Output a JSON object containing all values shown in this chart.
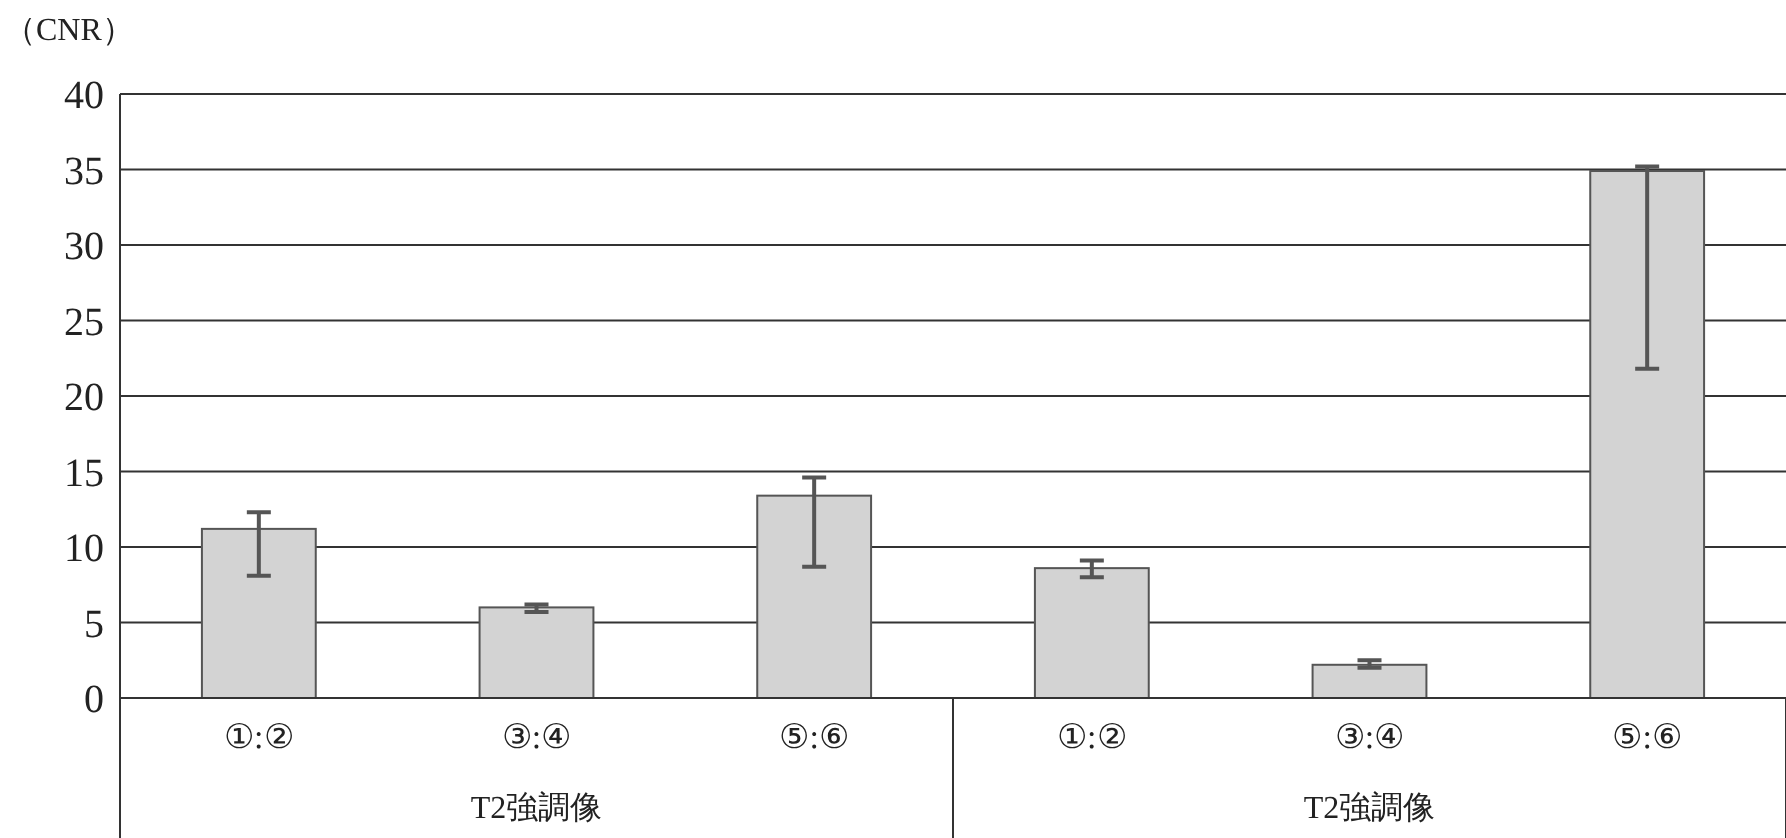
{
  "chart_data": {
    "type": "bar",
    "ylabel": "（CNR）",
    "categories": [
      "①:②",
      "③:④",
      "⑤:⑥",
      "①:②",
      "③:④",
      "⑤:⑥"
    ],
    "values": [
      11.2,
      6.0,
      13.4,
      8.6,
      2.2,
      34.9
    ],
    "errors": [
      [
        8.1,
        12.3
      ],
      [
        5.7,
        6.2
      ],
      [
        8.7,
        14.6
      ],
      [
        8.0,
        9.1
      ],
      [
        2.0,
        2.5
      ],
      [
        21.8,
        35.2
      ]
    ],
    "color": "#d3d3d3",
    "ylim": [
      0,
      40
    ],
    "yticks": [
      0,
      5,
      10,
      15,
      20,
      25,
      30,
      35,
      40
    ],
    "grid": "y",
    "annotations": [
      "T2強調像",
      "T2強調像"
    ]
  }
}
